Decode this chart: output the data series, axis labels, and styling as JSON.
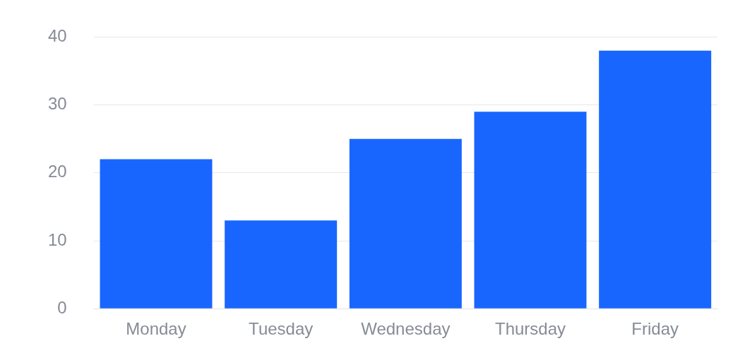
{
  "chart_data": {
    "type": "bar",
    "categories": [
      "Monday",
      "Tuesday",
      "Wednesday",
      "Thursday",
      "Friday"
    ],
    "values": [
      22,
      13,
      25,
      29,
      38
    ],
    "color": "#1966ff",
    "ylim": [
      0,
      40
    ],
    "yticks": [
      0,
      10,
      20,
      30,
      40
    ],
    "grid": "y",
    "legend": false
  }
}
